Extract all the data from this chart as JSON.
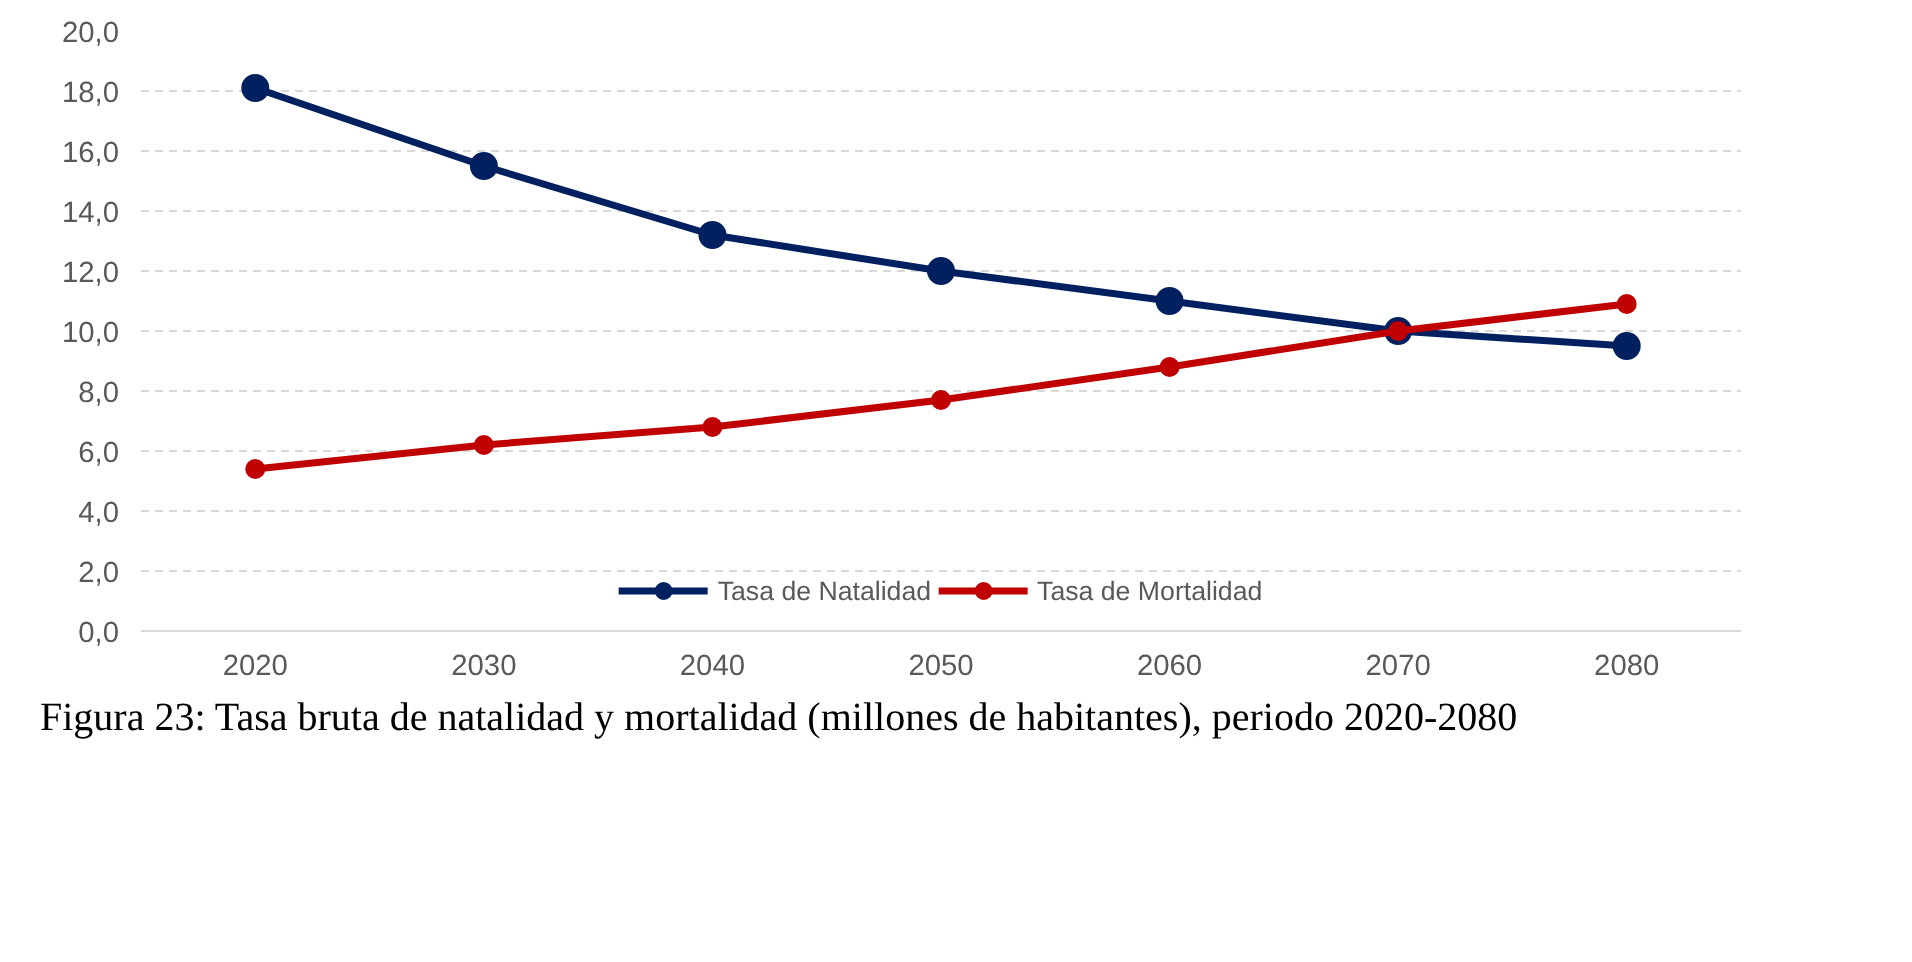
{
  "chart_data": {
    "type": "line",
    "categories": [
      "2020",
      "2030",
      "2040",
      "2050",
      "2060",
      "2070",
      "2080"
    ],
    "series": [
      {
        "name": "Tasa de Natalidad",
        "color": "#002060",
        "values": [
          18.1,
          15.5,
          13.2,
          12.0,
          11.0,
          10.0,
          9.5
        ]
      },
      {
        "name": "Tasa de Mortalidad",
        "color": "#c00000",
        "values": [
          5.4,
          6.2,
          6.8,
          7.7,
          8.8,
          10.0,
          10.9
        ]
      }
    ],
    "ylim": [
      0,
      20
    ],
    "yticks": [
      {
        "value": 0,
        "label": "0,0"
      },
      {
        "value": 2,
        "label": "2,0"
      },
      {
        "value": 4,
        "label": "4,0"
      },
      {
        "value": 6,
        "label": "6,0"
      },
      {
        "value": 8,
        "label": "8,0"
      },
      {
        "value": 10,
        "label": "10,0"
      },
      {
        "value": 12,
        "label": "12,0"
      },
      {
        "value": 14,
        "label": "14,0"
      },
      {
        "value": 16,
        "label": "16,0"
      },
      {
        "value": 18,
        "label": "18,0"
      },
      {
        "value": 20,
        "label": "20,0"
      }
    ],
    "grid": "y",
    "legend": "bottom",
    "marker": "circle",
    "line_style": "solid",
    "annotations": [
      "Figura 23: Tasa bruta de natalidad y mortalidad (millones de habitantes), periodo 2020-2080"
    ]
  }
}
